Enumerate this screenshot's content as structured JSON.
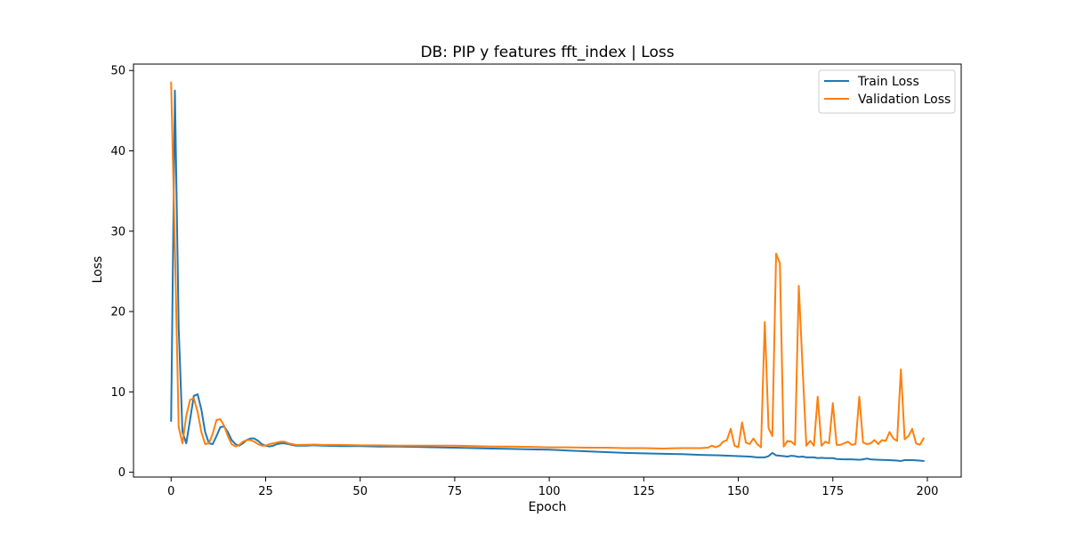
{
  "chart_data": {
    "type": "line",
    "title": "DB: PIP y features fft_index | Loss",
    "xlabel": "Epoch",
    "ylabel": "Loss",
    "xlim": [
      -9.95,
      208.95
    ],
    "ylim": [
      -0.6,
      50.8
    ],
    "xticks": [
      0,
      25,
      50,
      75,
      100,
      125,
      150,
      175,
      200
    ],
    "yticks": [
      0,
      10,
      20,
      30,
      40,
      50
    ],
    "grid": false,
    "legend_position": "top-right",
    "series": [
      {
        "name": "Train Loss",
        "color": "#1f77b4",
        "points": [
          [
            0,
            6.4
          ],
          [
            1,
            47.5
          ],
          [
            2,
            18
          ],
          [
            3,
            5
          ],
          [
            4,
            3.6
          ],
          [
            5,
            6.5
          ],
          [
            6,
            9.5
          ],
          [
            7,
            9.7
          ],
          [
            8,
            7.8
          ],
          [
            9,
            5
          ],
          [
            10,
            3.6
          ],
          [
            11,
            3.5
          ],
          [
            12,
            4.5
          ],
          [
            13,
            5.6
          ],
          [
            14,
            5.7
          ],
          [
            15,
            5
          ],
          [
            16,
            4
          ],
          [
            17,
            3.5
          ],
          [
            18,
            3.3
          ],
          [
            19,
            3.6
          ],
          [
            20,
            4
          ],
          [
            21,
            4.2
          ],
          [
            22,
            4.2
          ],
          [
            23,
            3.9
          ],
          [
            24,
            3.5
          ],
          [
            25,
            3.3
          ],
          [
            26,
            3.2
          ],
          [
            27,
            3.3
          ],
          [
            28,
            3.5
          ],
          [
            29,
            3.6
          ],
          [
            30,
            3.6
          ],
          [
            31,
            3.5
          ],
          [
            32,
            3.4
          ],
          [
            33,
            3.3
          ],
          [
            34,
            3.3
          ],
          [
            35,
            3.3
          ],
          [
            36,
            3.3
          ],
          [
            37,
            3.35
          ],
          [
            38,
            3.35
          ],
          [
            40,
            3.3
          ],
          [
            45,
            3.25
          ],
          [
            50,
            3.25
          ],
          [
            55,
            3.2
          ],
          [
            60,
            3.2
          ],
          [
            65,
            3.15
          ],
          [
            70,
            3.1
          ],
          [
            75,
            3.05
          ],
          [
            80,
            3.0
          ],
          [
            85,
            2.95
          ],
          [
            90,
            2.9
          ],
          [
            95,
            2.85
          ],
          [
            100,
            2.8
          ],
          [
            105,
            2.7
          ],
          [
            110,
            2.6
          ],
          [
            115,
            2.5
          ],
          [
            120,
            2.4
          ],
          [
            125,
            2.35
          ],
          [
            130,
            2.3
          ],
          [
            135,
            2.25
          ],
          [
            140,
            2.15
          ],
          [
            145,
            2.1
          ],
          [
            150,
            2.0
          ],
          [
            153,
            1.95
          ],
          [
            155,
            1.85
          ],
          [
            157,
            1.85
          ],
          [
            158,
            2.0
          ],
          [
            159,
            2.4
          ],
          [
            160,
            2.1
          ],
          [
            162,
            2.0
          ],
          [
            163,
            1.95
          ],
          [
            164,
            2.05
          ],
          [
            165,
            2.0
          ],
          [
            166,
            1.9
          ],
          [
            167,
            1.95
          ],
          [
            168,
            1.85
          ],
          [
            170,
            1.85
          ],
          [
            171,
            1.75
          ],
          [
            172,
            1.8
          ],
          [
            173,
            1.75
          ],
          [
            175,
            1.75
          ],
          [
            176,
            1.65
          ],
          [
            178,
            1.6
          ],
          [
            180,
            1.6
          ],
          [
            182,
            1.55
          ],
          [
            183,
            1.6
          ],
          [
            184,
            1.7
          ],
          [
            185,
            1.6
          ],
          [
            187,
            1.55
          ],
          [
            190,
            1.5
          ],
          [
            192,
            1.45
          ],
          [
            193,
            1.4
          ],
          [
            194,
            1.5
          ],
          [
            196,
            1.5
          ],
          [
            198,
            1.45
          ],
          [
            199,
            1.4
          ]
        ]
      },
      {
        "name": "Validation Loss",
        "color": "#ff7f0e",
        "points": [
          [
            0,
            48.5
          ],
          [
            1,
            28
          ],
          [
            2,
            5.6
          ],
          [
            3,
            3.6
          ],
          [
            4,
            7
          ],
          [
            5,
            9
          ],
          [
            6,
            9.2
          ],
          [
            7,
            7.5
          ],
          [
            8,
            5
          ],
          [
            9,
            3.5
          ],
          [
            10,
            3.6
          ],
          [
            11,
            4.8
          ],
          [
            12,
            6.5
          ],
          [
            13,
            6.6
          ],
          [
            14,
            5.8
          ],
          [
            15,
            4.5
          ],
          [
            16,
            3.5
          ],
          [
            17,
            3.2
          ],
          [
            18,
            3.4
          ],
          [
            19,
            3.8
          ],
          [
            20,
            4.0
          ],
          [
            21,
            4.0
          ],
          [
            22,
            3.8
          ],
          [
            23,
            3.5
          ],
          [
            24,
            3.3
          ],
          [
            25,
            3.3
          ],
          [
            26,
            3.5
          ],
          [
            27,
            3.6
          ],
          [
            28,
            3.7
          ],
          [
            29,
            3.8
          ],
          [
            30,
            3.8
          ],
          [
            31,
            3.6
          ],
          [
            32,
            3.5
          ],
          [
            33,
            3.4
          ],
          [
            34,
            3.4
          ],
          [
            35,
            3.4
          ],
          [
            38,
            3.45
          ],
          [
            40,
            3.4
          ],
          [
            45,
            3.4
          ],
          [
            50,
            3.35
          ],
          [
            55,
            3.35
          ],
          [
            60,
            3.3
          ],
          [
            65,
            3.3
          ],
          [
            70,
            3.3
          ],
          [
            75,
            3.3
          ],
          [
            80,
            3.25
          ],
          [
            85,
            3.2
          ],
          [
            90,
            3.2
          ],
          [
            95,
            3.15
          ],
          [
            100,
            3.1
          ],
          [
            105,
            3.1
          ],
          [
            110,
            3.05
          ],
          [
            115,
            3.05
          ],
          [
            120,
            3.0
          ],
          [
            125,
            3.0
          ],
          [
            130,
            2.95
          ],
          [
            135,
            3.0
          ],
          [
            140,
            3.0
          ],
          [
            142,
            3.05
          ],
          [
            143,
            3.3
          ],
          [
            144,
            3.1
          ],
          [
            145,
            3.3
          ],
          [
            146,
            3.8
          ],
          [
            147,
            4.0
          ],
          [
            148,
            5.4
          ],
          [
            149,
            3.3
          ],
          [
            150,
            3.1
          ],
          [
            151,
            6.2
          ],
          [
            152,
            3.7
          ],
          [
            153,
            3.5
          ],
          [
            154,
            4.2
          ],
          [
            155,
            3.5
          ],
          [
            156,
            3.1
          ],
          [
            157,
            18.7
          ],
          [
            158,
            5.5
          ],
          [
            159,
            4.5
          ],
          [
            160,
            27.2
          ],
          [
            161,
            26
          ],
          [
            162,
            3.2
          ],
          [
            163,
            3.9
          ],
          [
            164,
            3.8
          ],
          [
            165,
            3.4
          ],
          [
            166,
            23.2
          ],
          [
            167,
            13
          ],
          [
            168,
            3.3
          ],
          [
            169,
            3.9
          ],
          [
            170,
            3.3
          ],
          [
            171,
            9.4
          ],
          [
            172,
            3.3
          ],
          [
            173,
            3.8
          ],
          [
            174,
            3.6
          ],
          [
            175,
            8.6
          ],
          [
            176,
            3.4
          ],
          [
            177,
            3.4
          ],
          [
            178,
            3.6
          ],
          [
            179,
            3.8
          ],
          [
            180,
            3.4
          ],
          [
            181,
            3.5
          ],
          [
            182,
            9.4
          ],
          [
            183,
            3.7
          ],
          [
            184,
            3.5
          ],
          [
            185,
            3.6
          ],
          [
            186,
            4.0
          ],
          [
            187,
            3.5
          ],
          [
            188,
            4.0
          ],
          [
            189,
            3.9
          ],
          [
            190,
            5.0
          ],
          [
            191,
            4.2
          ],
          [
            192,
            3.9
          ],
          [
            193,
            12.8
          ],
          [
            194,
            4.1
          ],
          [
            195,
            4.5
          ],
          [
            196,
            5.4
          ],
          [
            197,
            3.6
          ],
          [
            198,
            3.4
          ],
          [
            199,
            4.2
          ]
        ]
      }
    ]
  }
}
